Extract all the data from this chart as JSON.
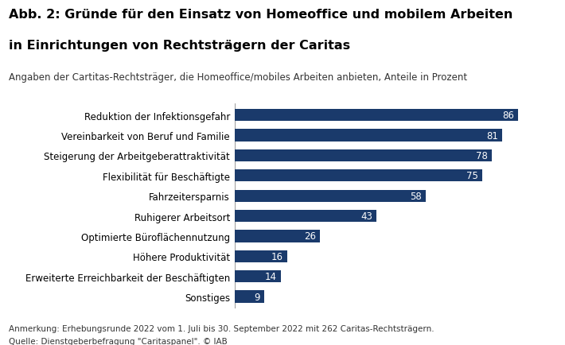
{
  "title_line1": "Abb. 2: Gründe für den Einsatz von Homeoffice und mobilem Arbeiten",
  "title_line2": "in Einrichtungen von Rechtsträgern der Caritas",
  "subtitle": "Angaben der Cartitas-Rechtsträger, die Homeoffice/mobiles Arbeiten anbieten, Anteile in Prozent",
  "footnote1": "Anmerkung: Erhebungsrunde 2022 vom 1. Juli bis 30. September 2022 mit 262 Caritas-Rechtsträgern.",
  "footnote2": "Quelle: Dienstgeberbefragung \"Caritaspanel\". © IAB",
  "categories": [
    "Reduktion der Infektionsgefahr",
    "Vereinbarkeit von Beruf und Familie",
    "Steigerung der Arbeitgeberattraktivität",
    "Flexibilität für Beschäftigte",
    "Fahrzeitersparnis",
    "Ruhigerer Arbeitsort",
    "Optimierte Büroflächennutzung",
    "Höhere Produktivität",
    "Erweiterte Erreichbarkeit der Beschäftigten",
    "Sonstiges"
  ],
  "values": [
    86,
    81,
    78,
    75,
    58,
    43,
    26,
    16,
    14,
    9
  ],
  "bar_color": "#1a3a6b",
  "label_color": "#ffffff",
  "background_color": "#ffffff",
  "bar_height": 0.6,
  "xlim": [
    0,
    95
  ],
  "title_fontsize": 11.5,
  "subtitle_fontsize": 8.5,
  "category_fontsize": 8.5,
  "value_fontsize": 8.5,
  "footnote_fontsize": 7.5
}
